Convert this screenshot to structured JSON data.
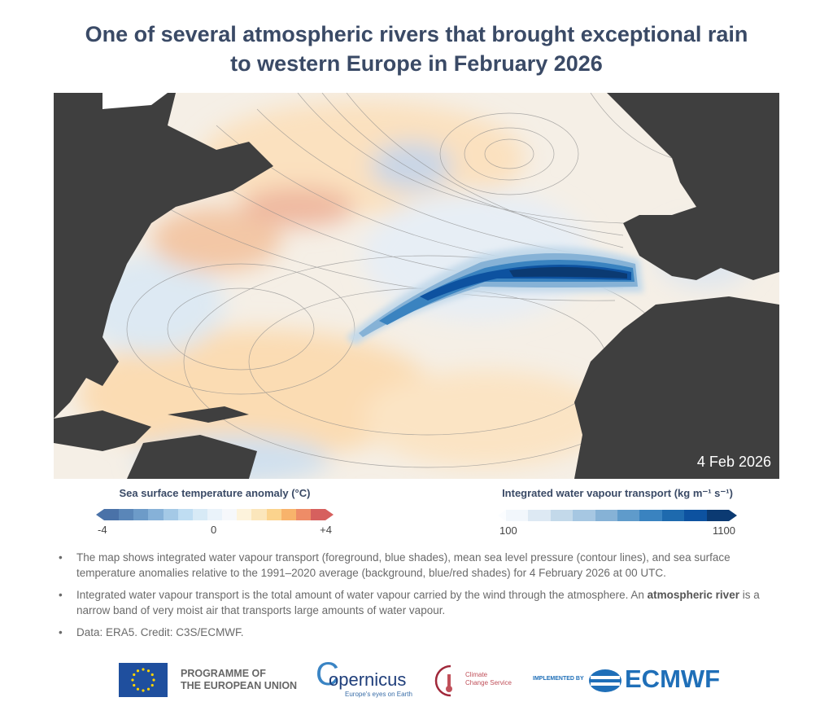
{
  "title_line1": "One of several atmospheric rivers that brought exceptional rain",
  "title_line2": "to western Europe in February 2026",
  "map": {
    "date_label": "4 Feb 2026",
    "land_color": "#3f3f3f",
    "river_color": "#1a4f8f"
  },
  "legend_sst": {
    "title": "Sea surface temperature anomaly (°C)",
    "min_label": "-4",
    "mid_label": "0",
    "max_label": "+4",
    "colors": [
      "#4a72a8",
      "#5a86b8",
      "#6d9bc8",
      "#86b1d8",
      "#a4c9e6",
      "#bfddf2",
      "#d7eaf6",
      "#eaf3fa",
      "#f6f8fb",
      "#fdf3dc",
      "#fbe6bb",
      "#fbd38d",
      "#f8b36b",
      "#ee8c67",
      "#d6605e"
    ]
  },
  "legend_ivt": {
    "title": "Integrated water vapour transport (kg m⁻¹ s⁻¹)",
    "min_label": "100",
    "max_label": "1100",
    "colors": [
      "#f2f7fc",
      "#dde9f3",
      "#c3d9ea",
      "#a6c7e2",
      "#86b2d6",
      "#5f9bcb",
      "#3a83c0",
      "#1e6aae",
      "#0d52a0",
      "#0b3a72"
    ]
  },
  "notes": [
    {
      "text": "The map shows integrated water vapour transport (foreground, blue shades), mean sea level pressure (contour lines), and sea surface temperature anomalies relative to the 1991–2020 average (background, blue/red shades) for 4 February 2026 at 00 UTC."
    },
    {
      "text_before": "Integrated water vapour transport is the total amount of water vapour carried by the wind through the atmosphere. An ",
      "bold": "atmospheric river",
      "text_after": " is a narrow band of very moist air that transports large amounts of water vapour."
    },
    {
      "text": "Data: ERA5. Credit: C3S/ECMWF."
    }
  ],
  "logos": {
    "eu_line1": "PROGRAMME OF",
    "eu_line2": "THE EUROPEAN UNION",
    "copernicus": "opernicus",
    "copernicus_c": "C",
    "copernicus_tagline": "Europe's eyes on Earth",
    "c3s_line1": "Climate",
    "c3s_line2": "Change Service",
    "implemented_by": "IMPLEMENTED BY",
    "ecmwf": "ECMWF"
  }
}
